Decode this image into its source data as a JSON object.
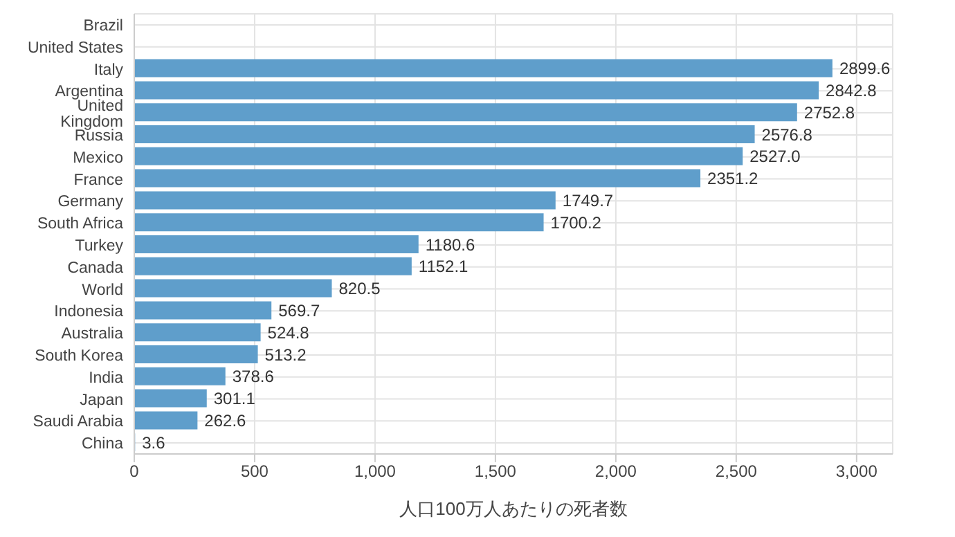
{
  "chart_data": {
    "type": "bar",
    "orientation": "horizontal",
    "categories": [
      "Brazil",
      "United States",
      "Italy",
      "Argentina",
      "United Kingdom",
      "Russia",
      "Mexico",
      "France",
      "Germany",
      "South Africa",
      "Turkey",
      "Canada",
      "World",
      "Indonesia",
      "Australia",
      "South Korea",
      "India",
      "Japan",
      "Saudi Arabia",
      "China"
    ],
    "values": [
      null,
      null,
      2899.6,
      2842.8,
      2752.8,
      2576.8,
      2527.0,
      2351.2,
      1749.7,
      1700.2,
      1180.6,
      1152.1,
      820.5,
      569.7,
      524.8,
      513.2,
      378.6,
      301.1,
      262.6,
      3.6
    ],
    "value_labels": [
      null,
      null,
      "2899.6",
      "2842.8",
      "2752.8",
      "2576.8",
      "2527.0",
      "2351.2",
      "1749.7",
      "1700.2",
      "1180.6",
      "1152.1",
      "820.5",
      "569.7",
      "524.8",
      "513.2",
      "378.6",
      "301.1",
      "262.6",
      "3.6"
    ],
    "color": "#5f9ecb",
    "xlabel": "人口100万人あたりの死者数",
    "xlim": [
      0,
      3150
    ],
    "xticks": [
      {
        "value": 0,
        "label": "0"
      },
      {
        "value": 500,
        "label": "500"
      },
      {
        "value": 1000,
        "label": "1,000"
      },
      {
        "value": 1500,
        "label": "1,500"
      },
      {
        "value": 2000,
        "label": "2,000"
      },
      {
        "value": 2500,
        "label": "2,500"
      },
      {
        "value": 3000,
        "label": "3,000"
      }
    ],
    "grid": true
  }
}
